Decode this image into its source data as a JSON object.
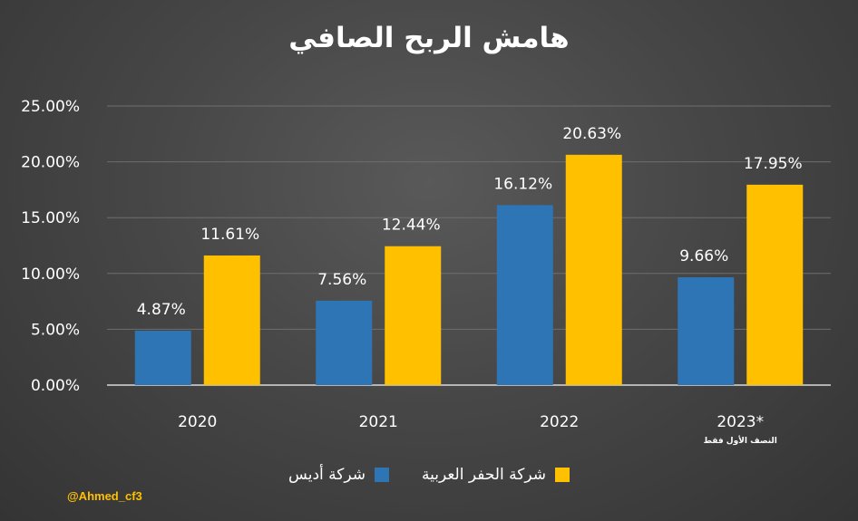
{
  "chart_data": {
    "type": "bar",
    "title": "هامش الربح الصافي",
    "categories": [
      "2020",
      "2021",
      "2022",
      "2023*"
    ],
    "category_notes": [
      "",
      "",
      "",
      "النصف الأول فقط"
    ],
    "series": [
      {
        "name": "شركة أديس",
        "values": [
          4.87,
          7.56,
          16.12,
          9.66
        ],
        "labels": [
          "4.87%",
          "7.56%",
          "16.12%",
          "9.66%"
        ],
        "color": "#2e75b6"
      },
      {
        "name": "شركة الحفر العربية",
        "values": [
          11.61,
          12.44,
          20.63,
          17.95
        ],
        "labels": [
          "11.61%",
          "12.44%",
          "20.63%",
          "17.95%"
        ],
        "color": "#ffc000"
      }
    ],
    "yticks": [
      "0.00%",
      "5.00%",
      "10.00%",
      "15.00%",
      "20.00%",
      "25.00%"
    ],
    "ylim": [
      0,
      25
    ],
    "xlabel": "",
    "ylabel": "",
    "grid": true,
    "legend": "bottom"
  },
  "watermark": "@Ahmed_cf3"
}
